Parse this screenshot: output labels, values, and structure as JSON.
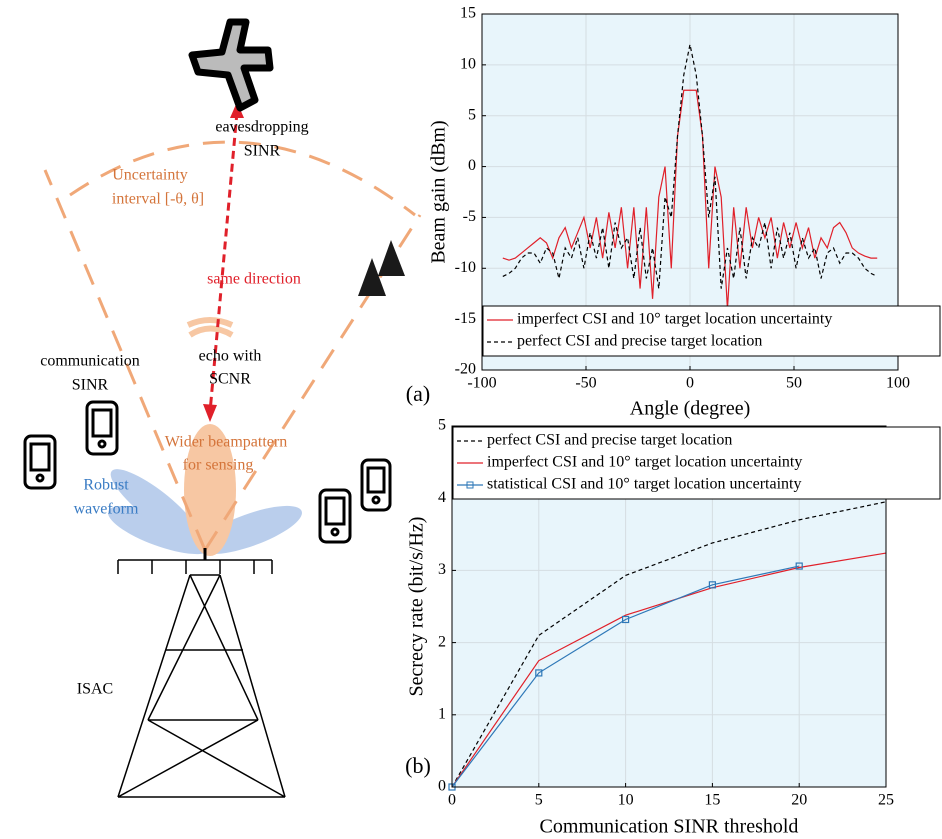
{
  "diagram": {
    "eavesdropping": [
      "eavesdropping",
      "SINR"
    ],
    "uncertainty": [
      "Uncertainty",
      "interval [-θ, θ]"
    ],
    "same_direction": "same direction",
    "communication": [
      "communication",
      "SINR"
    ],
    "echo": [
      "echo with",
      "SCNR"
    ],
    "wider": [
      "Wider beampattern",
      "for sensing"
    ],
    "robust": [
      "Robust",
      "waveform"
    ],
    "isac": "ISAC"
  },
  "chart_data": [
    {
      "type": "line",
      "label": "(a)",
      "x_label": "Angle (degree)",
      "y_label": "Beam gain (dBm)",
      "x": [
        -90,
        -87,
        -84,
        -81,
        -78,
        -75,
        -72,
        -69,
        -66,
        -63,
        -60,
        -57,
        -54,
        -51,
        -48,
        -45,
        -42,
        -39,
        -36,
        -33,
        -30,
        -27,
        -24,
        -21,
        -18,
        -15,
        -12,
        -9,
        -6,
        -3,
        0,
        3,
        6,
        9,
        12,
        15,
        18,
        21,
        24,
        27,
        30,
        33,
        36,
        39,
        42,
        45,
        48,
        51,
        54,
        57,
        60,
        63,
        66,
        69,
        72,
        75,
        78,
        81,
        84,
        87,
        90
      ],
      "series": [
        {
          "name": "imperfect CSI and 10° target location uncertainty",
          "color": "#e0202a",
          "line_style": "solid",
          "values": [
            -9,
            -9.2,
            -9,
            -8.5,
            -8,
            -7.5,
            -7,
            -7.5,
            -9,
            -7,
            -6,
            -8,
            -6.5,
            -5,
            -8,
            -5,
            -9,
            -4.5,
            -8,
            -4,
            -10,
            -4,
            -12,
            -4,
            -13,
            -3,
            0,
            -10,
            3,
            7.5,
            7.5,
            7.5,
            3,
            -10,
            0,
            -3,
            -14,
            -4,
            -10,
            -4,
            -8,
            -5,
            -7,
            -5,
            -9,
            -5.5,
            -8,
            -5.5,
            -8,
            -6,
            -9,
            -7,
            -8,
            -6,
            -5.5,
            -6.5,
            -8,
            -8.5,
            -8.8,
            -9,
            -9
          ]
        },
        {
          "name": "perfect CSI and precise target location",
          "color": "#000000",
          "line_style": "dashed",
          "values": [
            -10.8,
            -10.5,
            -10,
            -9,
            -8.5,
            -8.5,
            -9.5,
            -8,
            -8.5,
            -11,
            -8,
            -9,
            -7,
            -10,
            -6.5,
            -9,
            -6,
            -10,
            -5.5,
            -8,
            -7,
            -11,
            -6,
            -11,
            -8,
            -12,
            -3,
            -5,
            3,
            9,
            12,
            9,
            3,
            -5,
            -1,
            -12,
            -8,
            -11,
            -6,
            -11,
            -7,
            -8,
            -5.5,
            -10,
            -6,
            -9,
            -6.5,
            -10,
            -7,
            -9,
            -8,
            -11,
            -8.5,
            -8,
            -9.5,
            -8.5,
            -8.5,
            -9,
            -10,
            -10.5,
            -10.8
          ]
        }
      ],
      "xlim": [
        -100,
        100
      ],
      "xticks": [
        -100,
        -50,
        0,
        50,
        100
      ],
      "ylim": [
        -20,
        15
      ],
      "yticks": [
        -20,
        -15,
        -10,
        -5,
        0,
        5,
        10,
        15
      ],
      "grid": true,
      "legend": "lower",
      "background": "#e8f5fb"
    },
    {
      "type": "line",
      "label": "(b)",
      "x_label": "Communication SINR threshold",
      "y_label": "Secrecy rate (bit/s/Hz)",
      "x": [
        0,
        5,
        10,
        15,
        20,
        25
      ],
      "series": [
        {
          "name": "perfect CSI and precise target location",
          "color": "#000000",
          "line_style": "dashed",
          "values": [
            0,
            2.1,
            2.93,
            3.38,
            3.7,
            3.95
          ]
        },
        {
          "name": "imperfect CSI and 10° target location uncertainty",
          "color": "#e0202a",
          "line_style": "solid",
          "values": [
            0,
            1.75,
            2.38,
            2.76,
            3.04,
            3.24
          ]
        },
        {
          "name": "statistical CSI and 10° target location uncertainty",
          "color": "#2e78b8",
          "line_style": "solid",
          "marker": "square",
          "values": [
            0,
            1.58,
            2.32,
            2.8,
            3.06,
            null
          ]
        }
      ],
      "xlim": [
        0,
        25
      ],
      "xticks": [
        0,
        5,
        10,
        15,
        20,
        25
      ],
      "ylim": [
        0,
        5
      ],
      "yticks": [
        0,
        1,
        2,
        3,
        4,
        5
      ],
      "grid": true,
      "legend": "upper",
      "background": "#e8f5fb"
    }
  ]
}
